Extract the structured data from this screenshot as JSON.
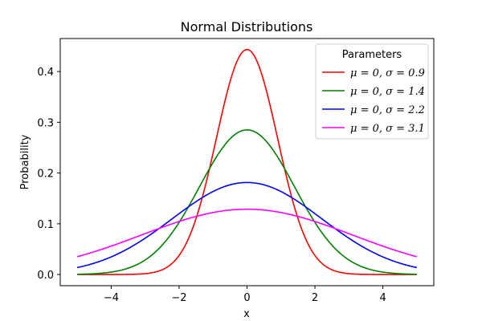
{
  "chart_data": {
    "type": "line",
    "title": "Normal Distributions",
    "xlabel": "x",
    "ylabel": "Probability",
    "xlim": [
      -5.5,
      5.5
    ],
    "ylim": [
      -0.022,
      0.465
    ],
    "x_range": [
      -5,
      5
    ],
    "xticks": [
      -4,
      -2,
      0,
      2,
      4
    ],
    "xtick_labels": [
      "−4",
      "−2",
      "0",
      "2",
      "4"
    ],
    "yticks": [
      0.0,
      0.1,
      0.2,
      0.3,
      0.4
    ],
    "ytick_labels": [
      "0.0",
      "0.1",
      "0.2",
      "0.3",
      "0.4"
    ],
    "grid": false,
    "legend": {
      "title": "Parameters",
      "placement": "top-right"
    },
    "series": [
      {
        "name": "μ = 0, σ = 0.9",
        "mu": 0,
        "sigma": 0.9,
        "color": "#ff0000"
      },
      {
        "name": "μ = 0, σ = 1.4",
        "mu": 0,
        "sigma": 1.4,
        "color": "#008000"
      },
      {
        "name": "μ = 0, σ = 2.2",
        "mu": 0,
        "sigma": 2.2,
        "color": "#0000ff"
      },
      {
        "name": "μ = 0, σ = 3.1",
        "mu": 0,
        "sigma": 3.1,
        "color": "#ff00ff"
      }
    ]
  }
}
